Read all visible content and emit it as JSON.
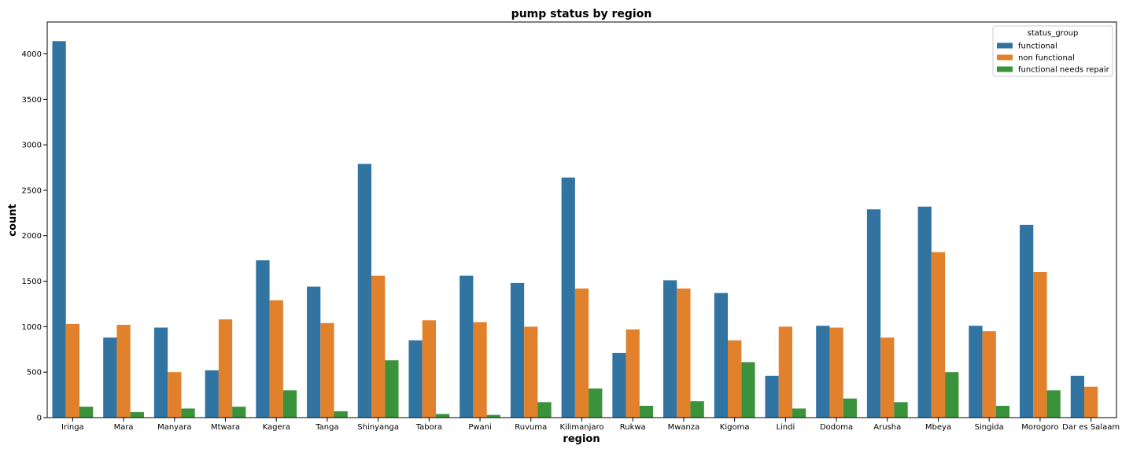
{
  "chart_data": {
    "type": "bar",
    "title": "pump status by region",
    "xlabel": "region",
    "ylabel": "count",
    "ylim": [
      0,
      4350
    ],
    "yticks": [
      0,
      500,
      1000,
      1500,
      2000,
      2500,
      3000,
      3500,
      4000
    ],
    "grid": false,
    "legend": {
      "title": "status_group",
      "placement": "top-right"
    },
    "categories": [
      "Iringa",
      "Mara",
      "Manyara",
      "Mtwara",
      "Kagera",
      "Tanga",
      "Shinyanga",
      "Tabora",
      "Pwani",
      "Ruvuma",
      "Kilimanjaro",
      "Rukwa",
      "Mwanza",
      "Kigoma",
      "Lindi",
      "Dodoma",
      "Arusha",
      "Mbeya",
      "Singida",
      "Morogoro",
      "Dar es Salaam"
    ],
    "series": [
      {
        "name": "functional",
        "color": "#3274a1",
        "values": [
          4140,
          880,
          990,
          520,
          1730,
          1440,
          2790,
          850,
          1560,
          1480,
          2640,
          710,
          1510,
          1370,
          460,
          1010,
          2290,
          2320,
          1010,
          2120,
          460
        ]
      },
      {
        "name": "non functional",
        "color": "#e1812c",
        "values": [
          1030,
          1020,
          500,
          1080,
          1290,
          1040,
          1560,
          1070,
          1050,
          1000,
          1420,
          970,
          1420,
          850,
          1000,
          990,
          880,
          1820,
          950,
          1600,
          340
        ]
      },
      {
        "name": "functional needs repair",
        "color": "#3a923a",
        "values": [
          120,
          60,
          100,
          120,
          300,
          70,
          630,
          40,
          30,
          170,
          320,
          130,
          180,
          610,
          100,
          210,
          170,
          500,
          130,
          300,
          0
        ]
      }
    ]
  }
}
